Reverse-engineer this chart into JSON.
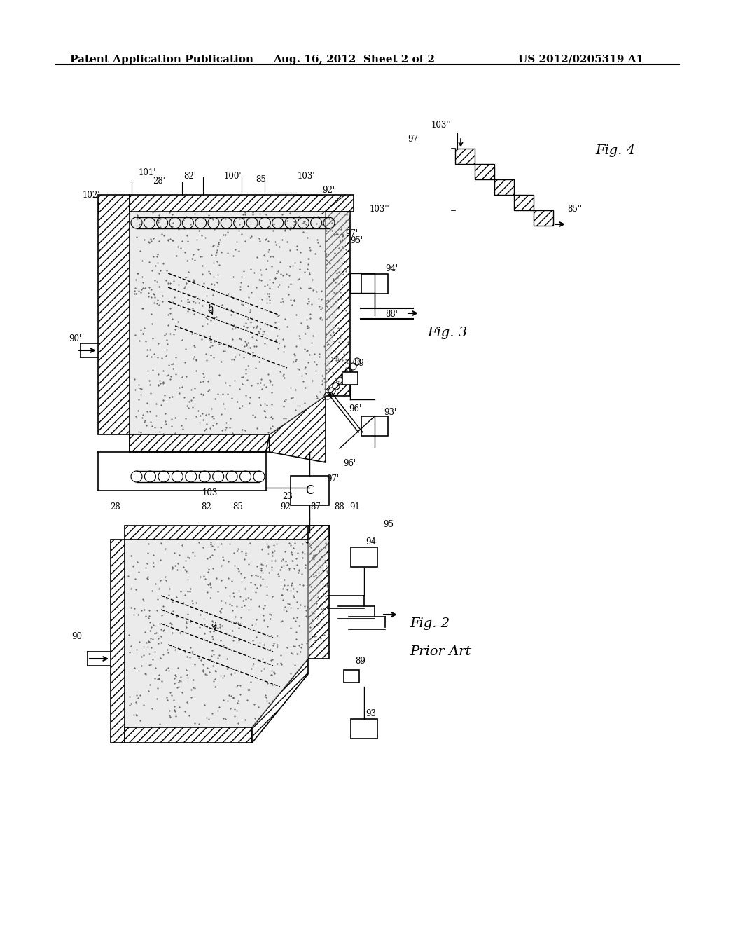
{
  "bg_color": "#ffffff",
  "line_color": "#000000",
  "hatch_color": "#000000",
  "stipple_color": "#aaaaaa",
  "header_left": "Patent Application Publication",
  "header_mid": "Aug. 16, 2012  Sheet 2 of 2",
  "header_right": "US 2012/0205319 A1",
  "fig2_label": "Fig. 2",
  "fig2_sub": "Prior Art",
  "fig3_label": "Fig. 3",
  "fig4_label": "Fig. 4"
}
